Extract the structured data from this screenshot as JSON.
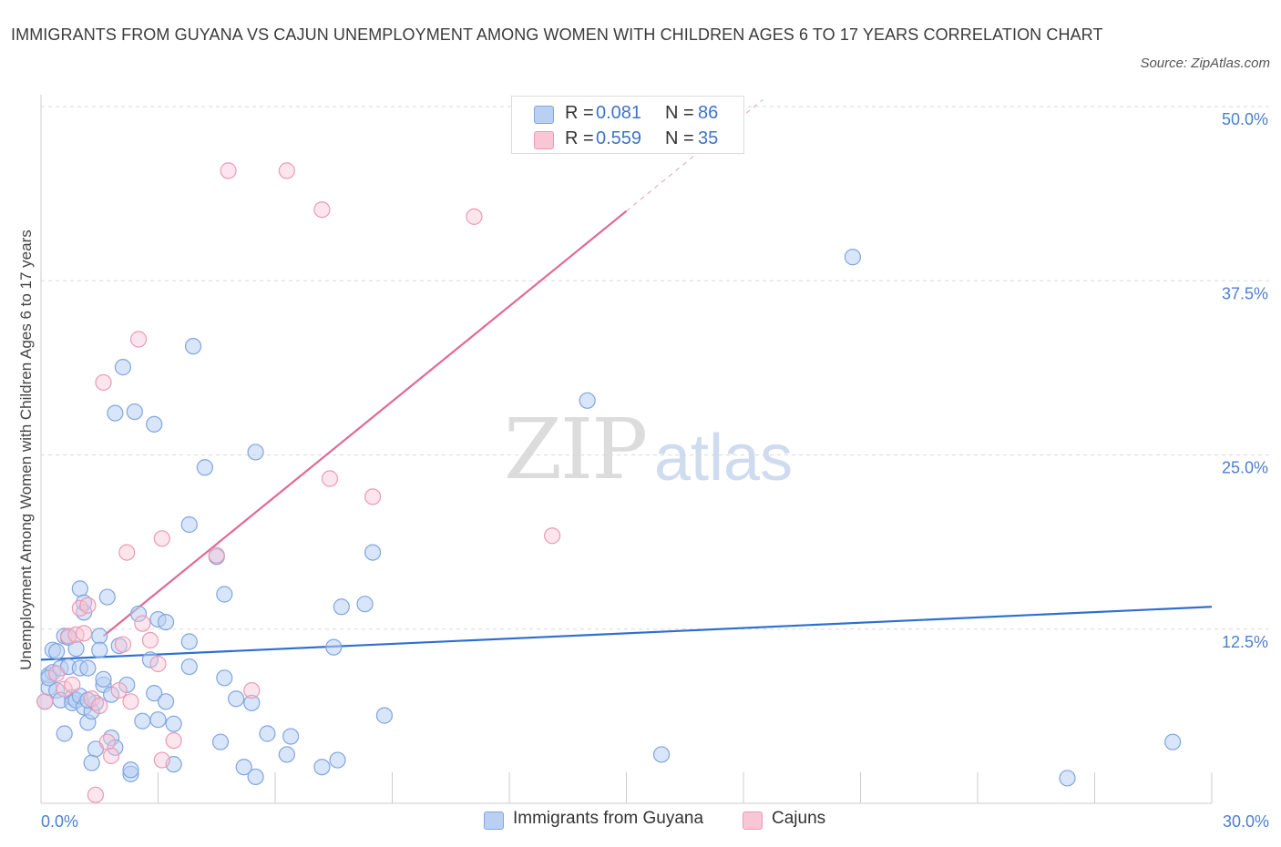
{
  "title": "IMMIGRANTS FROM GUYANA VS CAJUN UNEMPLOYMENT AMONG WOMEN WITH CHILDREN AGES 6 TO 17 YEARS CORRELATION CHART",
  "source": "Source: ZipAtlas.com",
  "watermark": {
    "zip": "ZIP",
    "atlas": "atlas"
  },
  "legend_top": {
    "rows": [
      {
        "r_label": "R =",
        "r_value": "0.081",
        "n_label": "N =",
        "n_value": "86"
      },
      {
        "r_label": "R =",
        "r_value": "0.559",
        "n_label": "N =",
        "n_value": "35"
      }
    ]
  },
  "legend_bottom": {
    "series1": "Immigrants from Guyana",
    "series2": "Cajuns"
  },
  "colors": {
    "blue_fill": "#b9d0f3",
    "blue_stroke": "#7fa6e0",
    "blue_line": "#2f6fd0",
    "pink_fill": "#f8c6d5",
    "pink_stroke": "#ec9ab3",
    "pink_line": "#e06a92",
    "tick_text": "#4a7fd1",
    "grid": "#d9d9d9"
  },
  "chart_data": {
    "type": "scatter",
    "title": "IMMIGRANTS FROM GUYANA VS CAJUN UNEMPLOYMENT AMONG WOMEN WITH CHILDREN AGES 6 TO 17 YEARS CORRELATION CHART",
    "xlabel": "",
    "ylabel": "Unemployment Among Women with Children Ages 6 to 17 years",
    "xlim": [
      0,
      30
    ],
    "ylim": [
      0,
      50
    ],
    "y_ticks": [
      12.5,
      25.0,
      37.5,
      50.0
    ],
    "y_tick_labels": [
      "12.5%",
      "25.0%",
      "37.5%",
      "50.0%"
    ],
    "x_tick_labels": [
      "0.0%",
      "30.0%"
    ],
    "grid": true,
    "series": [
      {
        "name": "Immigrants from Guyana",
        "R": 0.081,
        "N": 86,
        "trend": {
          "x0": 0,
          "y0": 10.3,
          "x1": 30,
          "y1": 14.1
        },
        "points": [
          [
            0.1,
            7.3
          ],
          [
            0.2,
            8.3
          ],
          [
            0.2,
            9.2
          ],
          [
            0.3,
            11.0
          ],
          [
            0.3,
            9.4
          ],
          [
            0.4,
            8.1
          ],
          [
            0.5,
            7.4
          ],
          [
            0.5,
            9.7
          ],
          [
            0.6,
            12.0
          ],
          [
            0.6,
            5.0
          ],
          [
            0.7,
            9.8
          ],
          [
            0.7,
            11.9
          ],
          [
            0.8,
            7.6
          ],
          [
            0.8,
            7.2
          ],
          [
            0.9,
            7.4
          ],
          [
            0.9,
            11.1
          ],
          [
            1.0,
            9.7
          ],
          [
            1.0,
            7.7
          ],
          [
            1.0,
            15.4
          ],
          [
            1.1,
            6.9
          ],
          [
            1.1,
            13.7
          ],
          [
            1.1,
            14.4
          ],
          [
            1.2,
            9.7
          ],
          [
            1.2,
            5.8
          ],
          [
            1.3,
            2.9
          ],
          [
            1.3,
            6.6
          ],
          [
            1.4,
            3.9
          ],
          [
            1.4,
            7.2
          ],
          [
            1.5,
            12.0
          ],
          [
            1.6,
            8.5
          ],
          [
            1.6,
            8.9
          ],
          [
            1.7,
            14.8
          ],
          [
            1.8,
            7.8
          ],
          [
            1.8,
            4.7
          ],
          [
            1.9,
            28.0
          ],
          [
            1.9,
            4.0
          ],
          [
            2.0,
            11.3
          ],
          [
            2.1,
            31.3
          ],
          [
            2.2,
            8.5
          ],
          [
            2.3,
            2.1
          ],
          [
            2.3,
            2.4
          ],
          [
            2.4,
            28.1
          ],
          [
            2.5,
            13.6
          ],
          [
            2.6,
            5.9
          ],
          [
            2.8,
            10.3
          ],
          [
            2.9,
            7.9
          ],
          [
            2.9,
            27.2
          ],
          [
            3.0,
            13.2
          ],
          [
            3.2,
            7.3
          ],
          [
            3.2,
            13.0
          ],
          [
            3.4,
            5.7
          ],
          [
            3.4,
            2.8
          ],
          [
            3.8,
            9.8
          ],
          [
            3.8,
            20.0
          ],
          [
            3.8,
            11.6
          ],
          [
            3.9,
            32.8
          ],
          [
            4.2,
            24.1
          ],
          [
            4.5,
            17.7
          ],
          [
            4.6,
            4.4
          ],
          [
            4.7,
            9.0
          ],
          [
            4.7,
            15.0
          ],
          [
            5.0,
            7.5
          ],
          [
            5.2,
            2.6
          ],
          [
            5.4,
            7.2
          ],
          [
            5.5,
            25.2
          ],
          [
            5.5,
            1.9
          ],
          [
            5.8,
            5.0
          ],
          [
            6.3,
            3.5
          ],
          [
            6.4,
            4.8
          ],
          [
            7.2,
            2.6
          ],
          [
            7.5,
            11.2
          ],
          [
            7.6,
            3.1
          ],
          [
            7.7,
            14.1
          ],
          [
            8.3,
            14.3
          ],
          [
            8.5,
            18.0
          ],
          [
            8.8,
            6.3
          ],
          [
            14.0,
            28.9
          ],
          [
            15.9,
            3.5
          ],
          [
            20.8,
            39.2
          ],
          [
            26.3,
            1.8
          ],
          [
            29.0,
            4.4
          ],
          [
            1.5,
            11.0
          ],
          [
            3.0,
            6.0
          ],
          [
            0.4,
            10.9
          ],
          [
            0.2,
            9.0
          ],
          [
            1.2,
            7.4
          ]
        ]
      },
      {
        "name": "Cajuns",
        "R": 0.559,
        "N": 35,
        "trend": {
          "x0": 1.6,
          "y0": 12.0,
          "x1": 15.0,
          "y1": 42.5
        },
        "trend_dashed": {
          "x0": 15.0,
          "y0": 42.5,
          "x1": 18.5,
          "y1": 50.5
        },
        "points": [
          [
            0.1,
            7.3
          ],
          [
            0.4,
            9.3
          ],
          [
            0.6,
            8.2
          ],
          [
            0.7,
            12.0
          ],
          [
            0.8,
            8.5
          ],
          [
            0.9,
            12.1
          ],
          [
            1.0,
            14.0
          ],
          [
            1.1,
            12.2
          ],
          [
            1.2,
            14.2
          ],
          [
            1.3,
            7.5
          ],
          [
            1.4,
            0.6
          ],
          [
            1.5,
            7.0
          ],
          [
            1.6,
            30.2
          ],
          [
            1.7,
            4.4
          ],
          [
            1.8,
            3.4
          ],
          [
            2.0,
            8.1
          ],
          [
            2.1,
            11.4
          ],
          [
            2.2,
            18.0
          ],
          [
            2.3,
            7.3
          ],
          [
            2.5,
            33.3
          ],
          [
            2.6,
            12.9
          ],
          [
            2.8,
            11.7
          ],
          [
            3.0,
            10.0
          ],
          [
            3.1,
            19.0
          ],
          [
            3.1,
            3.1
          ],
          [
            3.4,
            4.5
          ],
          [
            4.5,
            17.8
          ],
          [
            4.8,
            45.4
          ],
          [
            5.4,
            8.1
          ],
          [
            6.3,
            45.4
          ],
          [
            7.2,
            42.6
          ],
          [
            7.4,
            23.3
          ],
          [
            8.5,
            22.0
          ],
          [
            11.1,
            42.1
          ],
          [
            13.1,
            19.2
          ]
        ]
      }
    ]
  }
}
